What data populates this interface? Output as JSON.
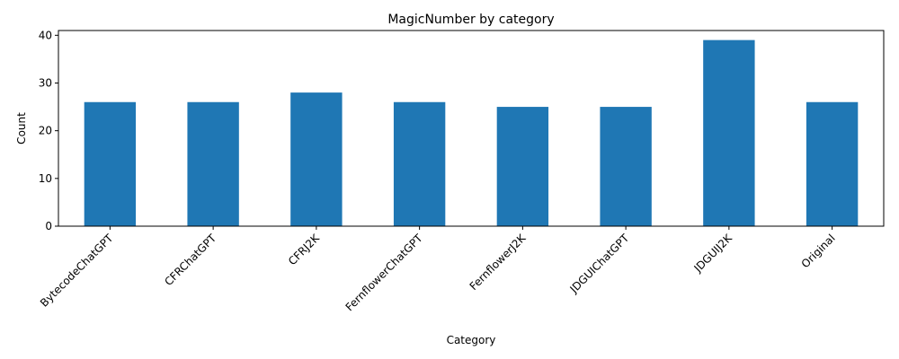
{
  "chart_data": {
    "type": "bar",
    "title": "MagicNumber by category",
    "xlabel": "Category",
    "ylabel": "Count",
    "categories": [
      "BytecodeChatGPT",
      "CFRChatGPT",
      "CFRJ2K",
      "FernflowerChatGPT",
      "FernflowerJ2K",
      "JDGUIChatGPT",
      "JDGUIJ2K",
      "Original"
    ],
    "values": [
      26,
      26,
      28,
      26,
      25,
      25,
      39,
      26
    ],
    "ylim": [
      0,
      41
    ],
    "yticks": [
      0,
      10,
      20,
      30,
      40
    ],
    "grid": false,
    "bar_color": "#1f77b4"
  }
}
